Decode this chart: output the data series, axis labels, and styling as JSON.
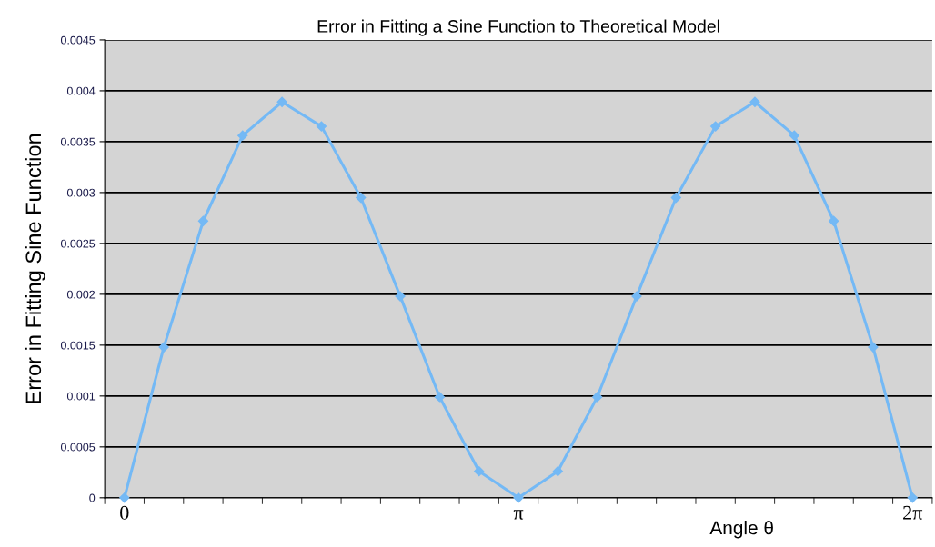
{
  "chart_data": {
    "type": "line",
    "title": "Error in Fitting a Sine Function to Theoretical Model",
    "xlabel": "Angle θ",
    "ylabel": "Error in Fitting Sine Function",
    "categories": [
      "0",
      null,
      null,
      null,
      null,
      null,
      null,
      null,
      null,
      null,
      "π",
      null,
      null,
      null,
      null,
      null,
      null,
      null,
      null,
      null,
      "2π"
    ],
    "series": [
      {
        "color": "#74b9f5",
        "values": [
          0,
          0.00148,
          0.00272,
          0.00356,
          0.00389,
          0.00365,
          0.00295,
          0.00198,
          0.00099,
          0.00026,
          0,
          0.00026,
          0.00099,
          0.00198,
          0.00295,
          0.00365,
          0.00389,
          0.00356,
          0.00272,
          0.00148,
          0
        ]
      }
    ],
    "ylim": [
      0,
      0.0045
    ],
    "yticks": [
      0,
      0.0005,
      0.001,
      0.0015,
      0.002,
      0.0025,
      0.003,
      0.0035,
      0.004,
      0.0045
    ],
    "grid": "y",
    "marker": "diamond",
    "line_style": "solid"
  }
}
